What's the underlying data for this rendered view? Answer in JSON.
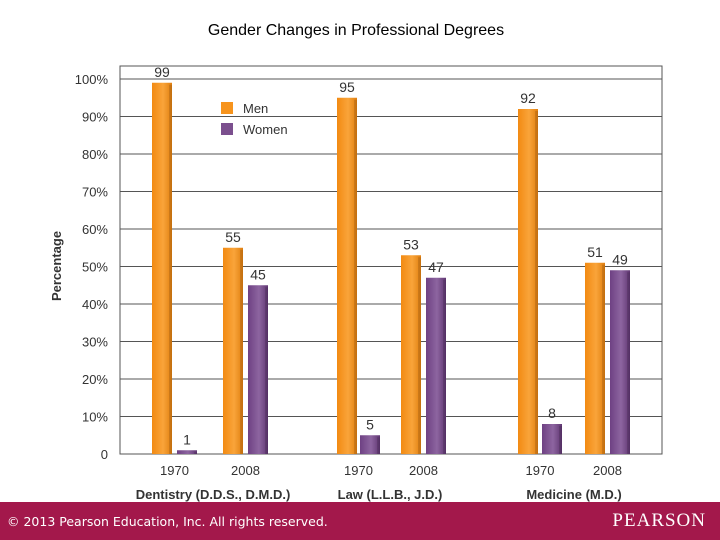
{
  "slide": {
    "title": "Gender Changes in Professional Degrees",
    "copyright": "© 2013  Pearson Education, Inc. All rights reserved.",
    "logo": "PEARSON"
  },
  "colors": {
    "men": "#f7941d",
    "women": "#7b4f8e",
    "footer": "#a3184b",
    "grid": "#555555"
  },
  "chart_data": {
    "type": "bar",
    "title": "Gender Changes in Professional Degrees",
    "ylabel": "Percentage",
    "xlabel": "",
    "ylim": [
      0,
      100
    ],
    "yticks": [
      {
        "value": 0,
        "label": "0"
      },
      {
        "value": 10,
        "label": "10%"
      },
      {
        "value": 20,
        "label": "20%"
      },
      {
        "value": 30,
        "label": "30%"
      },
      {
        "value": 40,
        "label": "40%"
      },
      {
        "value": 50,
        "label": "50%"
      },
      {
        "value": 60,
        "label": "60%"
      },
      {
        "value": 70,
        "label": "70%"
      },
      {
        "value": 80,
        "label": "80%"
      },
      {
        "value": 90,
        "label": "90%"
      },
      {
        "value": 100,
        "label": "100%"
      }
    ],
    "grid": true,
    "legend_position": "top-left",
    "series": [
      {
        "name": "Men",
        "key": "men"
      },
      {
        "name": "Women",
        "key": "women"
      }
    ],
    "groups": [
      {
        "label": "Dentistry (D.D.S., D.M.D.)",
        "key": "dentistry",
        "years": [
          {
            "year": "1970",
            "men": 99,
            "women": 1
          },
          {
            "year": "2008",
            "men": 55,
            "women": 45
          }
        ]
      },
      {
        "label": "Law (L.L.B., J.D.)",
        "key": "law",
        "years": [
          {
            "year": "1970",
            "men": 95,
            "women": 5
          },
          {
            "year": "2008",
            "men": 53,
            "women": 47
          }
        ]
      },
      {
        "label": "Medicine (M.D.)",
        "key": "medicine",
        "years": [
          {
            "year": "1970",
            "men": 92,
            "women": 8
          },
          {
            "year": "2008",
            "men": 51,
            "women": 49
          }
        ]
      }
    ]
  }
}
